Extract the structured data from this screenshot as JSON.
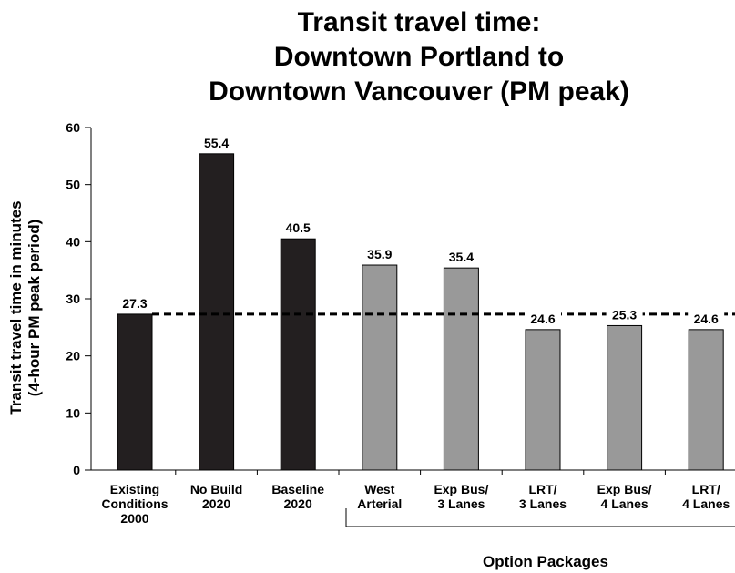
{
  "chart_data": {
    "type": "bar",
    "title": [
      "Transit travel time:",
      "Downtown Portland to",
      "Downtown Vancouver (PM peak)"
    ],
    "ylabel": [
      "Transit travel time in minutes",
      "(4-hour PM peak period)"
    ],
    "categories": [
      [
        "Existing",
        "Conditions",
        "2000"
      ],
      [
        "No Build",
        "2020"
      ],
      [
        "Baseline",
        "2020"
      ],
      [
        "West",
        "Arterial"
      ],
      [
        "Exp Bus/",
        "3 Lanes"
      ],
      [
        "LRT/",
        "3 Lanes"
      ],
      [
        "Exp Bus/",
        "4 Lanes"
      ],
      [
        "LRT/",
        "4 Lanes"
      ]
    ],
    "values": [
      27.3,
      55.4,
      40.5,
      35.9,
      35.4,
      24.6,
      25.3,
      24.6
    ],
    "colors": [
      "#231f20",
      "#231f20",
      "#231f20",
      "#999999",
      "#999999",
      "#999999",
      "#999999",
      "#999999"
    ],
    "reference_line": 27.3,
    "group_label": "Option Packages",
    "ylim": [
      0,
      60
    ],
    "yticks": [
      0,
      10,
      20,
      30,
      40,
      50,
      60
    ]
  }
}
